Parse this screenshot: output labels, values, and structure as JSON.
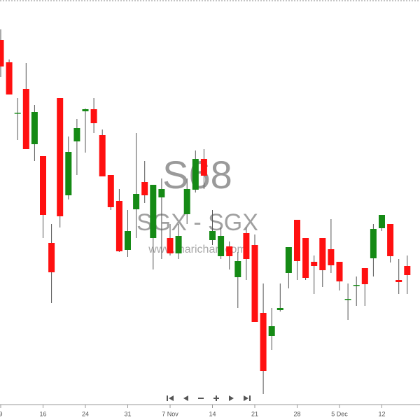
{
  "chart_data": {
    "type": "candlestick",
    "title": "S68",
    "subtitle": "SGX - SGX",
    "annotation": "www.marichart.com",
    "categories": [
      "9",
      null,
      null,
      null,
      null,
      "16",
      null,
      null,
      null,
      null,
      "24",
      null,
      null,
      null,
      null,
      "31",
      null,
      null,
      null,
      null,
      "7 Nov",
      null,
      null,
      null,
      null,
      "14",
      null,
      null,
      null,
      null,
      "21",
      null,
      null,
      null,
      null,
      "28",
      null,
      null,
      null,
      null,
      "5 Dec",
      null,
      null,
      null,
      null,
      "12",
      null,
      null,
      null
    ],
    "open": [
      543,
      511,
      438,
      473,
      394,
      377,
      253,
      460,
      321,
      398,
      441,
      444,
      407,
      350,
      313,
      243,
      301,
      340,
      260,
      318,
      260,
      238,
      294,
      329,
      373,
      257,
      234,
      248,
      204,
      267,
      250,
      153,
      120,
      157,
      210,
      286,
      260,
      226,
      260,
      244,
      226,
      172,
      192,
      217,
      231,
      274,
      280,
      200,
      220
    ],
    "high": [
      558,
      515,
      460,
      510,
      450,
      377,
      280,
      460,
      405,
      430,
      445,
      460,
      415,
      350,
      330,
      300,
      410,
      370,
      336,
      345,
      280,
      280,
      345,
      385,
      387,
      300,
      275,
      255,
      240,
      275,
      265,
      195,
      160,
      195,
      247,
      286,
      260,
      235,
      260,
      287,
      226,
      195,
      205,
      217,
      280,
      293,
      280,
      230,
      235
    ],
    "low": [
      490,
      465,
      400,
      387,
      370,
      260,
      167,
      275,
      315,
      350,
      382,
      410,
      348,
      300,
      240,
      233,
      260,
      310,
      215,
      230,
      235,
      230,
      280,
      325,
      330,
      250,
      230,
      215,
      160,
      200,
      140,
      37,
      100,
      155,
      188,
      200,
      200,
      180,
      190,
      210,
      185,
      143,
      163,
      163,
      205,
      270,
      225,
      180,
      180
    ],
    "close": [
      505,
      465,
      439,
      387,
      440,
      293,
      211,
      291,
      383,
      417,
      444,
      424,
      348,
      304,
      241,
      270,
      323,
      321,
      336,
      330,
      238,
      263,
      330,
      373,
      349,
      270,
      263,
      234,
      227,
      230,
      140,
      70,
      134,
      160,
      247,
      227,
      203,
      220,
      214,
      221,
      198,
      173,
      193,
      194,
      273,
      293,
      234,
      197,
      207
    ],
    "up_color": "#158a15",
    "down_color": "#ff1010",
    "ylim": [
      0,
      600
    ]
  }
}
